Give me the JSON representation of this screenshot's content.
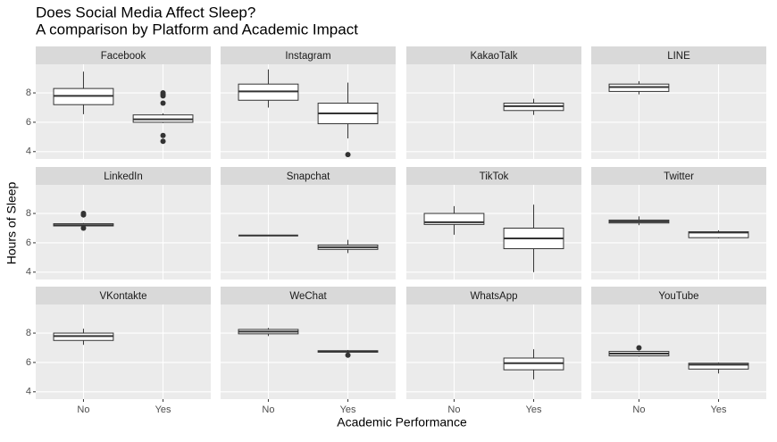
{
  "chart_data": {
    "type": "box",
    "title": "Does Social Media Affect Sleep?",
    "subtitle": "A comparison by Platform and Academic Impact",
    "x_label": "Academic Performance",
    "y_label": "Hours of Sleep",
    "categories": [
      "No",
      "Yes"
    ],
    "ylim": [
      3.5,
      9.95
    ],
    "yticks": [
      4,
      6,
      8
    ],
    "grid": true,
    "box_fill": "#ffffff",
    "box_stroke": "#333333",
    "panels": [
      {
        "name": "Facebook",
        "boxes": [
          {
            "min": 6.55,
            "q1": 7.2,
            "median": 7.8,
            "q3": 8.3,
            "max": 9.45,
            "outliers": []
          },
          {
            "min": 5.95,
            "q1": 6.0,
            "median": 6.2,
            "q3": 6.5,
            "max": 6.6,
            "outliers": [
              8.0,
              7.9,
              7.8,
              7.3,
              5.1,
              4.7
            ]
          }
        ]
      },
      {
        "name": "Instagram",
        "boxes": [
          {
            "min": 7.0,
            "q1": 7.5,
            "median": 8.1,
            "q3": 8.6,
            "max": 9.6,
            "outliers": []
          },
          {
            "min": 4.9,
            "q1": 5.9,
            "median": 6.6,
            "q3": 7.3,
            "max": 8.7,
            "outliers": [
              3.8
            ]
          }
        ]
      },
      {
        "name": "KakaoTalk",
        "boxes": [
          null,
          {
            "min": 6.5,
            "q1": 6.8,
            "median": 7.1,
            "q3": 7.3,
            "max": 7.6,
            "outliers": []
          }
        ]
      },
      {
        "name": "LINE",
        "boxes": [
          {
            "min": 7.9,
            "q1": 8.1,
            "median": 8.4,
            "q3": 8.6,
            "max": 8.8,
            "outliers": []
          },
          null
        ]
      },
      {
        "name": "LinkedIn",
        "boxes": [
          {
            "min": 7.1,
            "q1": 7.15,
            "median": 7.2,
            "q3": 7.3,
            "max": 7.35,
            "outliers": [
              8.0,
              7.9,
              7.0
            ]
          },
          null
        ]
      },
      {
        "name": "Snapchat",
        "boxes": [
          {
            "min": 6.5,
            "q1": 6.5,
            "median": 6.5,
            "q3": 6.5,
            "max": 6.5,
            "outliers": []
          },
          {
            "min": 5.3,
            "q1": 5.55,
            "median": 5.7,
            "q3": 5.85,
            "max": 6.2,
            "outliers": []
          }
        ]
      },
      {
        "name": "TikTok",
        "boxes": [
          {
            "min": 6.55,
            "q1": 7.25,
            "median": 7.4,
            "q3": 8.0,
            "max": 8.5,
            "outliers": []
          },
          {
            "min": 4.0,
            "q1": 5.6,
            "median": 6.3,
            "q3": 7.0,
            "max": 8.6,
            "outliers": []
          }
        ]
      },
      {
        "name": "Twitter",
        "boxes": [
          {
            "min": 7.2,
            "q1": 7.35,
            "median": 7.45,
            "q3": 7.55,
            "max": 7.8,
            "outliers": []
          },
          {
            "min": 6.3,
            "q1": 6.35,
            "median": 6.7,
            "q3": 6.75,
            "max": 6.85,
            "outliers": []
          }
        ]
      },
      {
        "name": "VKontakte",
        "boxes": [
          {
            "min": 7.2,
            "q1": 7.5,
            "median": 7.8,
            "q3": 8.0,
            "max": 8.3,
            "outliers": []
          },
          null
        ]
      },
      {
        "name": "WeChat",
        "boxes": [
          {
            "min": 7.8,
            "q1": 7.95,
            "median": 8.1,
            "q3": 8.25,
            "max": 8.35,
            "outliers": []
          },
          {
            "min": 6.65,
            "q1": 6.7,
            "median": 6.75,
            "q3": 6.8,
            "max": 6.85,
            "outliers": [
              6.5
            ]
          }
        ]
      },
      {
        "name": "WhatsApp",
        "boxes": [
          null,
          {
            "min": 4.85,
            "q1": 5.5,
            "median": 5.95,
            "q3": 6.3,
            "max": 6.9,
            "outliers": []
          }
        ]
      },
      {
        "name": "YouTube",
        "boxes": [
          {
            "min": 6.4,
            "q1": 6.45,
            "median": 6.6,
            "q3": 6.75,
            "max": 6.8,
            "outliers": [
              7.0
            ]
          },
          {
            "min": 5.25,
            "q1": 5.55,
            "median": 5.85,
            "q3": 5.95,
            "max": 6.0,
            "outliers": []
          }
        ]
      }
    ]
  }
}
